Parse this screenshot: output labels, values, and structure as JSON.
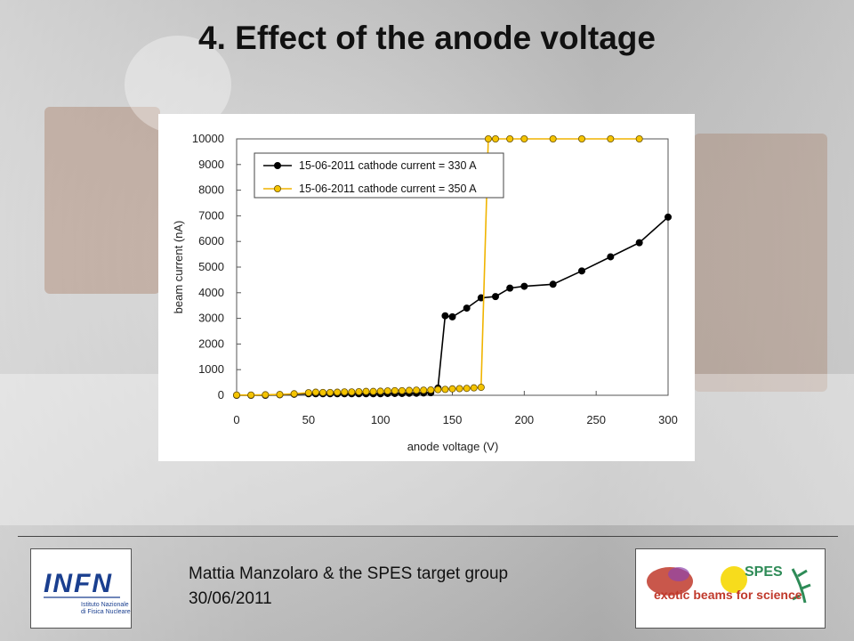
{
  "slide": {
    "title": "4. Effect of the anode voltage",
    "author": "Mattia Manzolaro & the SPES target group",
    "date": "30/06/2011",
    "logos": {
      "left": {
        "text": "INFN",
        "subtitle_line1": "Istituto Nazionale",
        "subtitle_line2": "di Fisica Nucleare",
        "color": "#1a3f8f"
      },
      "right": {
        "text_top": "SPES",
        "text_bottom": "exotic beams for science",
        "color": "#c0392b"
      }
    }
  },
  "chart_data": {
    "type": "line",
    "title": "",
    "xlabel": "anode voltage (V)",
    "ylabel": "beam current (nA)",
    "xlim": [
      0,
      300
    ],
    "ylim": [
      0,
      10000
    ],
    "xticks": [
      0,
      50,
      100,
      150,
      200,
      250,
      300
    ],
    "yticks": [
      0,
      1000,
      2000,
      3000,
      4000,
      5000,
      6000,
      7000,
      8000,
      9000,
      10000
    ],
    "grid": false,
    "legend": "top-left",
    "series": [
      {
        "name": "15-06-2011  cathode current = 330 A",
        "color": "#000000",
        "marker_fill": "#000000",
        "x": [
          0,
          10,
          20,
          30,
          40,
          50,
          55,
          60,
          65,
          70,
          75,
          80,
          85,
          90,
          95,
          100,
          105,
          110,
          115,
          120,
          125,
          130,
          135,
          140,
          145,
          150,
          160,
          170,
          180,
          190,
          200,
          220,
          240,
          260,
          280,
          300
        ],
        "y": [
          0,
          0,
          0,
          20,
          40,
          60,
          60,
          60,
          60,
          60,
          60,
          60,
          60,
          60,
          60,
          60,
          70,
          70,
          70,
          80,
          80,
          90,
          100,
          280,
          3100,
          3060,
          3400,
          3800,
          3850,
          4180,
          4250,
          4330,
          4850,
          5400,
          5950,
          6950
        ]
      },
      {
        "name": "15-06-2011  cathode current = 350 A",
        "color": "#f0b400",
        "marker_fill": "#f5c400",
        "x": [
          0,
          10,
          20,
          30,
          40,
          50,
          55,
          60,
          65,
          70,
          75,
          80,
          85,
          90,
          95,
          100,
          105,
          110,
          115,
          120,
          125,
          130,
          135,
          140,
          145,
          150,
          155,
          160,
          165,
          170,
          175,
          180,
          190,
          200,
          220,
          240,
          260,
          280
        ],
        "y": [
          10,
          10,
          20,
          30,
          60,
          100,
          120,
          110,
          110,
          120,
          130,
          130,
          140,
          150,
          150,
          160,
          170,
          180,
          180,
          190,
          200,
          200,
          210,
          220,
          230,
          250,
          260,
          270,
          290,
          310,
          10000,
          10000,
          10000,
          10000,
          10000,
          10000,
          10000,
          10000
        ]
      }
    ]
  }
}
